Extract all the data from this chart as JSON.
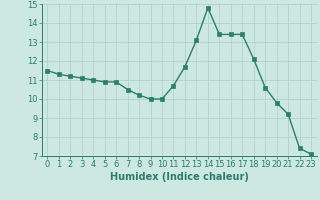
{
  "x": [
    0,
    1,
    2,
    3,
    4,
    5,
    6,
    7,
    8,
    9,
    10,
    11,
    12,
    13,
    14,
    15,
    16,
    17,
    18,
    19,
    20,
    21,
    22,
    23
  ],
  "y": [
    11.5,
    11.3,
    11.2,
    11.1,
    11.0,
    10.9,
    10.9,
    10.5,
    10.2,
    10.0,
    10.0,
    10.7,
    11.7,
    13.1,
    14.8,
    13.4,
    13.4,
    13.4,
    12.1,
    10.6,
    9.8,
    9.2,
    7.4,
    7.1
  ],
  "line_color": "#2e7d6e",
  "marker": "s",
  "marker_size": 2.2,
  "bg_color": "#cce8e0",
  "grid_color": "#aacfc7",
  "xlabel": "Humidex (Indice chaleur)",
  "xlim": [
    -0.5,
    23.5
  ],
  "ylim": [
    7,
    15
  ],
  "yticks": [
    7,
    8,
    9,
    10,
    11,
    12,
    13,
    14,
    15
  ],
  "xticks": [
    0,
    1,
    2,
    3,
    4,
    5,
    6,
    7,
    8,
    9,
    10,
    11,
    12,
    13,
    14,
    15,
    16,
    17,
    18,
    19,
    20,
    21,
    22,
    23
  ],
  "tick_fontsize": 6,
  "xlabel_fontsize": 7
}
